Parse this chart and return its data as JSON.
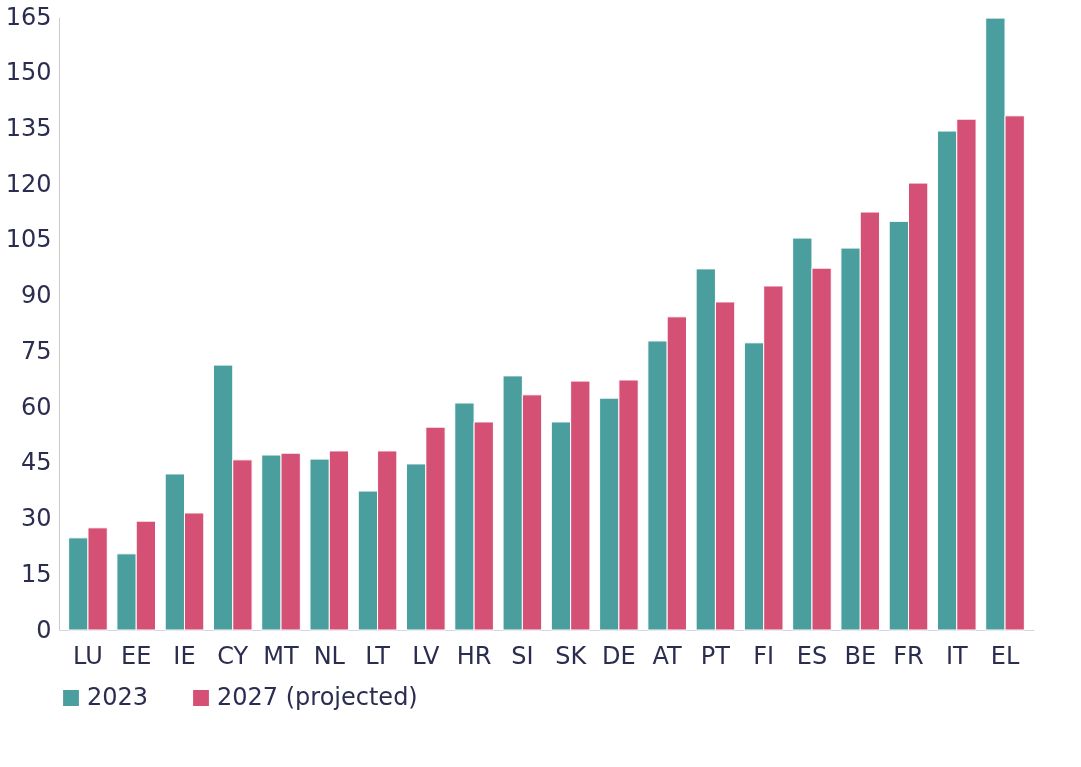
{
  "chart_data": {
    "type": "bar",
    "categories": [
      "LU",
      "EE",
      "IE",
      "CY",
      "MT",
      "NL",
      "LT",
      "LV",
      "HR",
      "SI",
      "SK",
      "DE",
      "AT",
      "PT",
      "FI",
      "ES",
      "BE",
      "FR",
      "IT",
      "EL"
    ],
    "series": [
      {
        "name": "2023",
        "color": "#4a9e9e",
        "values": [
          24.8,
          20.5,
          42,
          71.3,
          47.1,
          46,
          37.4,
          44.7,
          61.1,
          68.4,
          56,
          62.4,
          77.8,
          97.2,
          77.3,
          105.5,
          102.8,
          110,
          134.3,
          164.7
        ]
      },
      {
        "name": "2027 (projected)",
        "color": "#d45075",
        "values": [
          27.5,
          29.3,
          31.5,
          45.8,
          47.6,
          48.2,
          48.2,
          54.6,
          56,
          63.3,
          67,
          67.3,
          84.3,
          88.3,
          92.6,
          97.4,
          112.5,
          120.3,
          137.5,
          138.4
        ]
      }
    ],
    "ylim": [
      0,
      165
    ],
    "yticks": [
      0,
      15,
      30,
      45,
      60,
      75,
      90,
      105,
      120,
      135,
      150,
      165
    ],
    "grid": false,
    "legend": "bottom"
  }
}
